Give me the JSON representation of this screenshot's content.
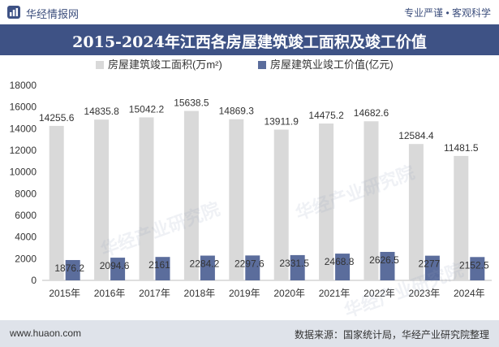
{
  "header": {
    "brand": "华经情报网",
    "tagline": "专业严谨 • 客观科学"
  },
  "title": "2015-2024年江西各房屋建筑竣工面积及竣工价值",
  "watermark": "华经产业研究院",
  "footer": {
    "url": "www.huaon.com",
    "source": "数据来源：国家统计局，华经产业研究院整理"
  },
  "colors": {
    "header_bg": "#3e5285",
    "series_area": "#d9d9d9",
    "series_value": "#5b6d9c",
    "footer_bg": "#dfe3ea"
  },
  "chart_data": {
    "type": "bar",
    "categories": [
      "2015年",
      "2016年",
      "2017年",
      "2018年",
      "2019年",
      "2020年",
      "2021年",
      "2022年",
      "2023年",
      "2024年"
    ],
    "series": [
      {
        "name": "房屋建筑竣工面积(万m²)",
        "values": [
          14255.6,
          14835.8,
          15042.2,
          15638.5,
          14869.3,
          13911.9,
          14475.2,
          14682.6,
          12584.4,
          11481.5
        ]
      },
      {
        "name": "房屋建筑业竣工价值(亿元)",
        "values": [
          1876.2,
          2094.6,
          2161,
          2284.2,
          2297.6,
          2331.5,
          2468.8,
          2626.5,
          2277,
          2152.5
        ]
      }
    ],
    "value_labels": [
      [
        "14255.6",
        "14835.8",
        "15042.2",
        "15638.5",
        "14869.3",
        "13911.9",
        "14475.2",
        "14682.6",
        "12584.4",
        "11481.5"
      ],
      [
        "1876.2",
        "2094.6",
        "2161",
        "2284.2",
        "2297.6",
        "2331.5",
        "2468.8",
        "2626.5",
        "2277",
        "2152.5"
      ]
    ],
    "ylim": [
      0,
      18000
    ],
    "yticks": [
      "0",
      "2000",
      "4000",
      "6000",
      "8000",
      "10000",
      "12000",
      "14000",
      "16000",
      "18000"
    ],
    "legend_position": "top-center",
    "grid": false
  }
}
